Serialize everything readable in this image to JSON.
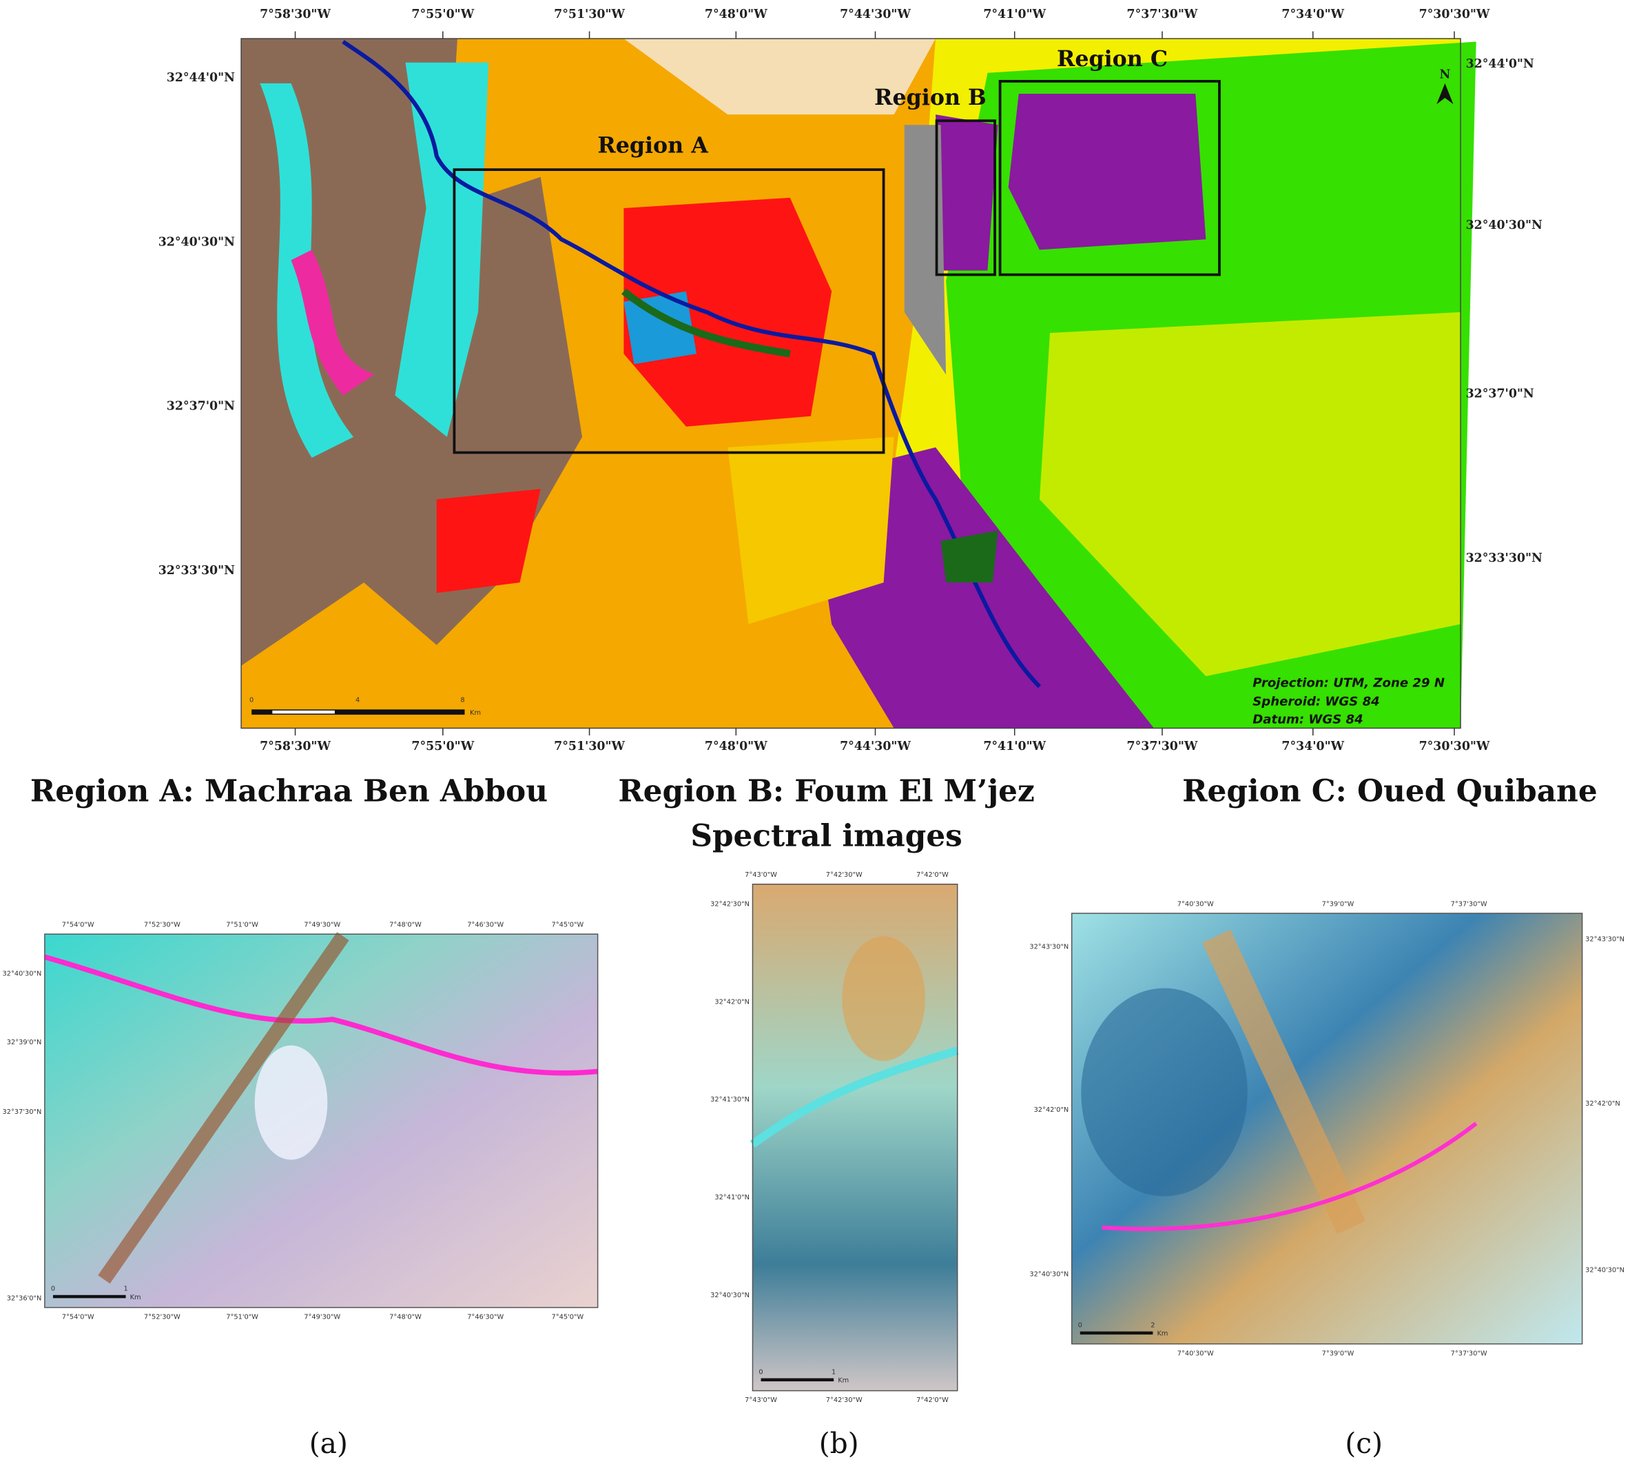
{
  "main_map": {
    "top_lon_labels": [
      "7°58'30\"W",
      "7°55'0\"W",
      "7°51'30\"W",
      "7°48'0\"W",
      "7°44'30\"W",
      "7°41'0\"W",
      "7°37'30\"W",
      "7°34'0\"W",
      "7°30'30\"W"
    ],
    "bottom_lon_labels": [
      "7°58'30\"W",
      "7°55'0\"W",
      "7°51'30\"W",
      "7°48'0\"W",
      "7°44'30\"W",
      "7°41'0\"W",
      "7°37'30\"W",
      "7°34'0\"W",
      "7°30'30\"W"
    ],
    "left_lat_labels": [
      "32°44'0\"N",
      "32°40'30\"N",
      "32°37'0\"N",
      "32°33'30\"N"
    ],
    "right_lat_labels": [
      "32°44'0\"N",
      "32°40'30\"N",
      "32°37'0\"N",
      "32°33'30\"N"
    ],
    "regions": [
      "Region A",
      "Region B",
      "Region C"
    ],
    "north": "N",
    "projection": [
      "Projection: UTM, Zone 29 N",
      "Spheroid: WGS 84",
      "Datum: WGS 84"
    ],
    "scale_bar": [
      "0",
      "4",
      "8",
      "Km"
    ]
  },
  "panel_titles": [
    "Region A: Machraa Ben Abbou",
    "Region B: Foum El M’jez",
    "Region C: Oued Quibane"
  ],
  "subtitle": "Spectral images",
  "panels": [
    {
      "caption": "(a)",
      "top_ticks": [
        "7°54'0\"W",
        "7°52'30\"W",
        "7°51'0\"W",
        "7°49'30\"W",
        "7°48'0\"W",
        "7°46'30\"W",
        "7°45'0\"W"
      ],
      "bottom_ticks": [
        "7°54'0\"W",
        "7°52'30\"W",
        "7°51'0\"W",
        "7°49'30\"W",
        "7°48'0\"W",
        "7°46'30\"W",
        "7°45'0\"W"
      ],
      "left_ticks": [
        "32°40'30\"N",
        "32°39'0\"N",
        "32°37'30\"N",
        "32°36'0\"N"
      ],
      "right_ticks": [],
      "scale": [
        "0",
        "1",
        "Km"
      ]
    },
    {
      "caption": "(b)",
      "top_ticks": [
        "7°43'0\"W",
        "7°42'30\"W",
        "7°42'0\"W"
      ],
      "bottom_ticks": [
        "7°43'0\"W",
        "7°42'30\"W",
        "7°42'0\"W"
      ],
      "left_ticks": [
        "32°42'30\"N",
        "32°42'0\"N",
        "32°41'30\"N",
        "32°41'0\"N",
        "32°40'30\"N"
      ],
      "right_ticks": [],
      "scale": [
        "0",
        "1",
        "Km"
      ]
    },
    {
      "caption": "(c)",
      "top_ticks": [
        "7°40'30\"W",
        "7°39'0\"W",
        "7°37'30\"W"
      ],
      "bottom_ticks": [
        "7°40'30\"W",
        "7°39'0\"W",
        "7°37'30\"W"
      ],
      "left_ticks": [
        "32°43'30\"N",
        "32°42'0\"N",
        "32°40'30\"N"
      ],
      "right_ticks": [
        "32°43'30\"N",
        "32°42'0\"N",
        "32°40'30\"N"
      ],
      "scale": [
        "0",
        "2",
        "Km"
      ]
    }
  ]
}
